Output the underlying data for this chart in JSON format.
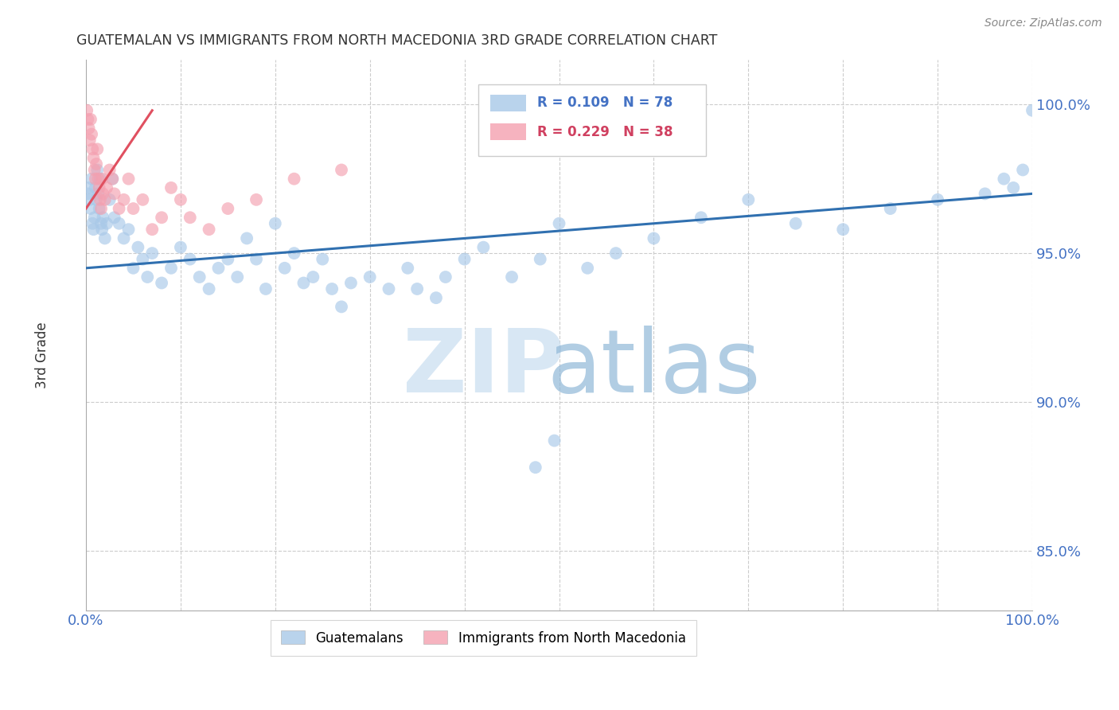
{
  "title": "GUATEMALAN VS IMMIGRANTS FROM NORTH MACEDONIA 3RD GRADE CORRELATION CHART",
  "source": "Source: ZipAtlas.com",
  "ylabel": "3rd Grade",
  "xlim": [
    0.0,
    1.0
  ],
  "ylim": [
    0.83,
    1.015
  ],
  "yticks": [
    0.85,
    0.9,
    0.95,
    1.0
  ],
  "ytick_labels": [
    "85.0%",
    "90.0%",
    "95.0%",
    "100.0%"
  ],
  "xtick_labels": [
    "0.0%",
    "100.0%"
  ],
  "xtick_pos": [
    0.0,
    1.0
  ],
  "legend_r1": "R = 0.109",
  "legend_n1": "N = 78",
  "legend_r2": "R = 0.229",
  "legend_n2": "N = 38",
  "blue_color": "#a8c8e8",
  "blue_line_color": "#3070b0",
  "pink_color": "#f4a0b0",
  "pink_line_color": "#e05060",
  "axis_color": "#4472c4",
  "background_color": "#ffffff",
  "blue_scatter_x": [
    0.002,
    0.003,
    0.004,
    0.005,
    0.006,
    0.007,
    0.008,
    0.009,
    0.01,
    0.011,
    0.012,
    0.013,
    0.014,
    0.015,
    0.016,
    0.017,
    0.018,
    0.02,
    0.022,
    0.025,
    0.028,
    0.03,
    0.035,
    0.04,
    0.045,
    0.05,
    0.055,
    0.06,
    0.065,
    0.07,
    0.08,
    0.09,
    0.1,
    0.11,
    0.12,
    0.13,
    0.14,
    0.15,
    0.16,
    0.17,
    0.18,
    0.19,
    0.2,
    0.21,
    0.22,
    0.23,
    0.24,
    0.25,
    0.26,
    0.27,
    0.28,
    0.3,
    0.32,
    0.34,
    0.35,
    0.37,
    0.38,
    0.4,
    0.42,
    0.45,
    0.48,
    0.5,
    0.53,
    0.56,
    0.6,
    0.65,
    0.7,
    0.75,
    0.8,
    0.85,
    0.9,
    0.95,
    0.97,
    0.98,
    0.99,
    1.0,
    0.495,
    0.475
  ],
  "blue_scatter_y": [
    0.97,
    0.972,
    0.968,
    0.965,
    0.975,
    0.96,
    0.958,
    0.962,
    0.972,
    0.968,
    0.978,
    0.97,
    0.965,
    0.975,
    0.96,
    0.958,
    0.962,
    0.955,
    0.96,
    0.968,
    0.975,
    0.962,
    0.96,
    0.955,
    0.958,
    0.945,
    0.952,
    0.948,
    0.942,
    0.95,
    0.94,
    0.945,
    0.952,
    0.948,
    0.942,
    0.938,
    0.945,
    0.948,
    0.942,
    0.955,
    0.948,
    0.938,
    0.96,
    0.945,
    0.95,
    0.94,
    0.942,
    0.948,
    0.938,
    0.932,
    0.94,
    0.942,
    0.938,
    0.945,
    0.938,
    0.935,
    0.942,
    0.948,
    0.952,
    0.942,
    0.948,
    0.96,
    0.945,
    0.95,
    0.955,
    0.962,
    0.968,
    0.96,
    0.958,
    0.965,
    0.968,
    0.97,
    0.975,
    0.972,
    0.978,
    0.998,
    0.887,
    0.878
  ],
  "pink_scatter_x": [
    0.001,
    0.002,
    0.003,
    0.004,
    0.005,
    0.006,
    0.007,
    0.008,
    0.009,
    0.01,
    0.011,
    0.012,
    0.013,
    0.014,
    0.015,
    0.016,
    0.017,
    0.018,
    0.02,
    0.022,
    0.025,
    0.028,
    0.03,
    0.035,
    0.04,
    0.045,
    0.05,
    0.06,
    0.07,
    0.08,
    0.09,
    0.1,
    0.11,
    0.13,
    0.15,
    0.18,
    0.22,
    0.27
  ],
  "pink_scatter_y": [
    0.998,
    0.995,
    0.992,
    0.988,
    0.995,
    0.99,
    0.985,
    0.982,
    0.978,
    0.975,
    0.98,
    0.985,
    0.975,
    0.972,
    0.968,
    0.965,
    0.975,
    0.97,
    0.968,
    0.972,
    0.978,
    0.975,
    0.97,
    0.965,
    0.968,
    0.975,
    0.965,
    0.968,
    0.958,
    0.962,
    0.972,
    0.968,
    0.962,
    0.958,
    0.965,
    0.968,
    0.975,
    0.978
  ]
}
